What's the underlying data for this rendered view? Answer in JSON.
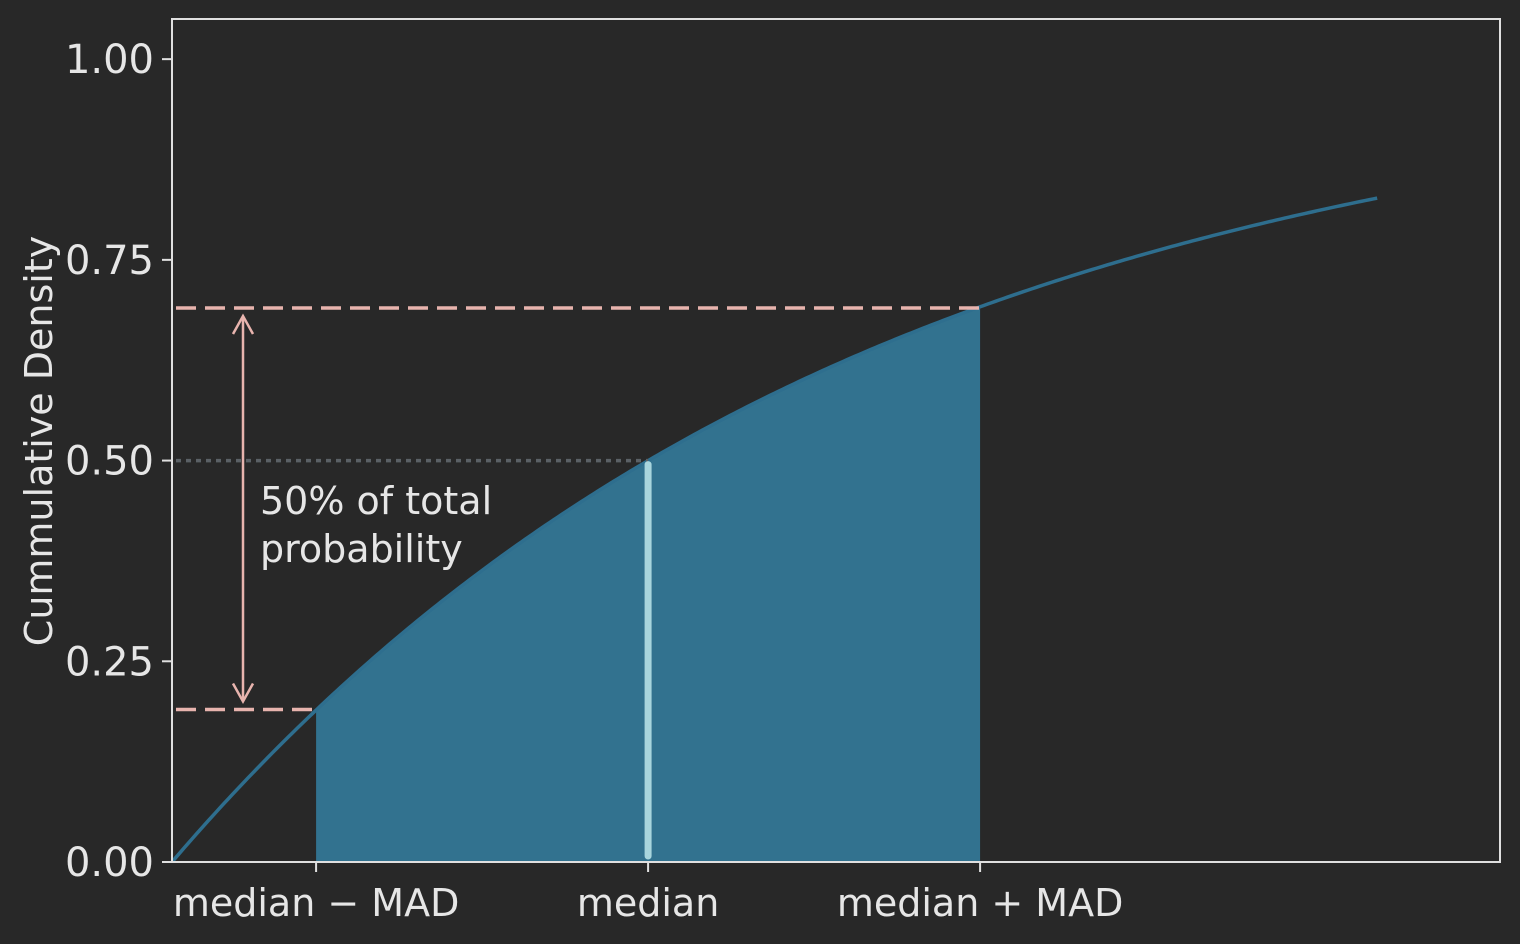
{
  "chart_data": {
    "type": "area",
    "ylabel": "Cummulative Density",
    "ylim": [
      0,
      1.05
    ],
    "yticks": [
      "0.00",
      "0.25",
      "0.50",
      "0.75",
      "1.00"
    ],
    "ytick_values": [
      0,
      0.25,
      0.5,
      0.75,
      1.0
    ],
    "xlim": [
      0,
      4
    ],
    "xticks": [
      {
        "x": 0.434,
        "label": "median − MAD"
      },
      {
        "x": 1.434,
        "label": "median"
      },
      {
        "x": 2.434,
        "label": "median + MAD"
      }
    ],
    "curve": {
      "description": "cdf",
      "rate": 0.4832,
      "x_max": 3.63
    },
    "shaded_region": {
      "x_from": 0.434,
      "x_to": 2.434
    },
    "median": {
      "x": 1.434,
      "y": 0.5
    },
    "lower_level": 0.19,
    "upper_level": 0.69,
    "annotation": [
      "50% of total",
      "probability"
    ],
    "colors": {
      "background": "#282828",
      "curve": "#2e6e8e",
      "fill": "#32728f",
      "median_line": "#a8d5dd",
      "mad_lines": "#e8b4ae",
      "median_level": "#5b6166",
      "axes": "#e0e0e0",
      "text": "#e6e6e6"
    }
  }
}
